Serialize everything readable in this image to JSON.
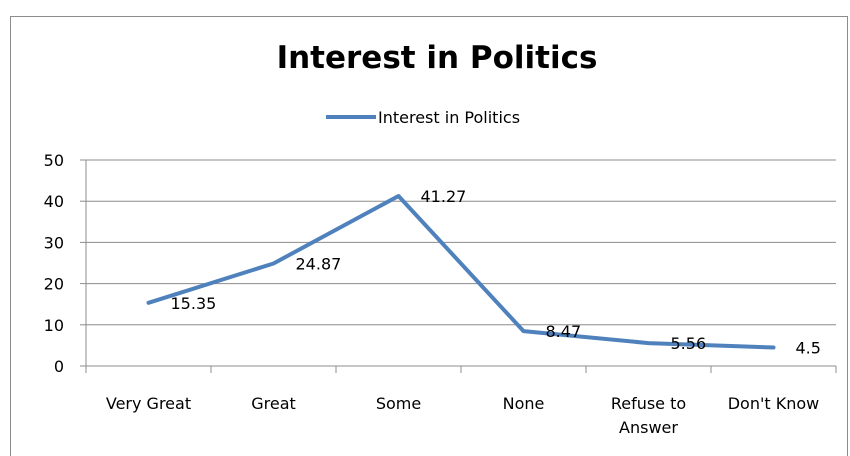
{
  "chart_data": {
    "type": "line",
    "title": "Interest in Politics",
    "xlabel": "",
    "ylabel": "",
    "categories": [
      [
        "Very Great"
      ],
      [
        "Great"
      ],
      [
        "Some"
      ],
      [
        "None"
      ],
      [
        "Refuse to",
        "Answer"
      ],
      [
        "Don't Know"
      ]
    ],
    "series": [
      {
        "name": "Interest in Politics",
        "values": [
          15.35,
          24.87,
          41.27,
          8.47,
          5.56,
          4.5
        ],
        "color": "#4f81bd"
      }
    ],
    "data_labels": [
      "15.35",
      "24.87",
      "41.27",
      "8.47",
      "5.56",
      "4.5"
    ],
    "ylim": [
      0,
      50
    ],
    "yticks": [
      0,
      10,
      20,
      30,
      40,
      50
    ],
    "grid": true,
    "legend": "top-center",
    "colors": {
      "grid": "#8c8c8c",
      "axis": "#8c8c8c",
      "line": "#4f81bd"
    }
  }
}
